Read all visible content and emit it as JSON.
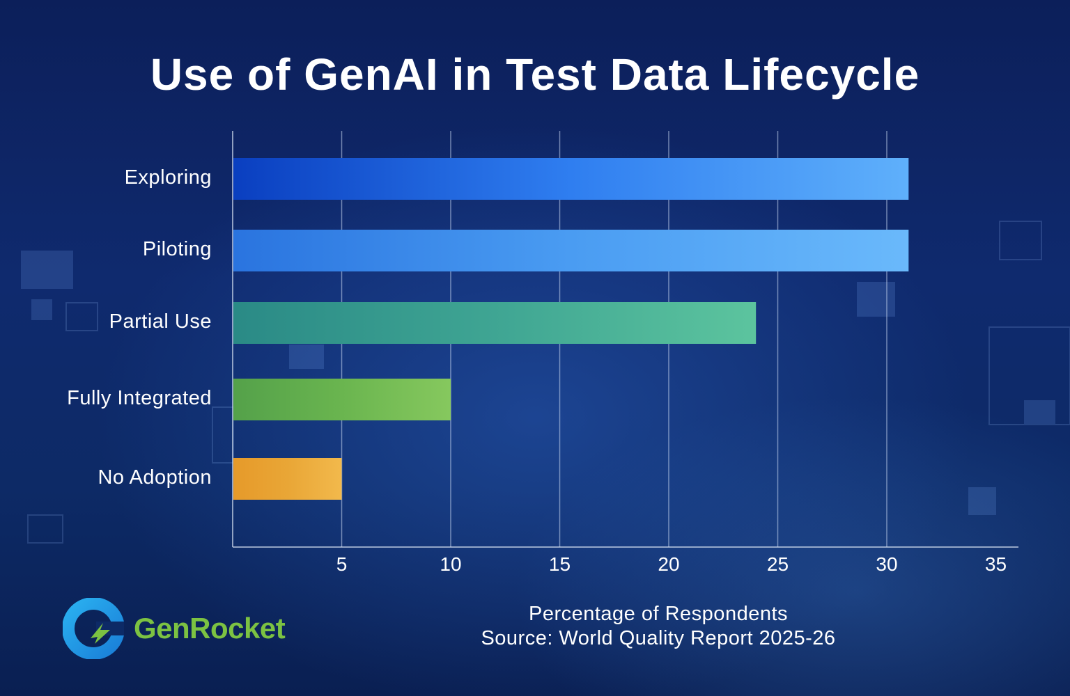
{
  "chart_data": {
    "type": "bar",
    "orientation": "horizontal",
    "title": "Use of GenAI in Test Data Lifecycle",
    "categories": [
      "Exploring",
      "Piloting",
      "Partial Use",
      "Fully Integrated",
      "No Adoption"
    ],
    "values": [
      31,
      31,
      24,
      10,
      5
    ],
    "bar_colors": [
      "#2f7ef0",
      "#4a9cf2",
      "#3fa593",
      "#6ab54f",
      "#e9a636"
    ],
    "xlabel": "Percentage of Respondents",
    "source": "Source: World Quality Report 2025-26",
    "xlim": [
      0,
      35
    ],
    "xticks": [
      "5",
      "10",
      "15",
      "20",
      "25",
      "30",
      "35"
    ],
    "grid": true
  },
  "brand": {
    "name": "GenRocket",
    "accent_color": "#7cc242",
    "icon": "genrocket-logo-icon"
  }
}
